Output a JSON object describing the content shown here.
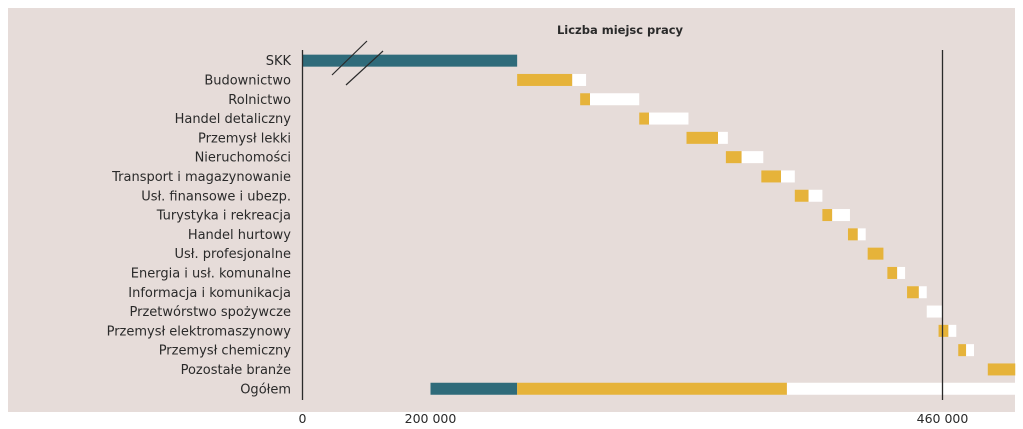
{
  "chart_data": {
    "type": "bar",
    "title": "Liczba miejsc pracy",
    "xlabel": "",
    "ylabel": "",
    "axis_break": "between 0 and 200 000",
    "x_ticks": [
      "0",
      "200 000",
      "460 000"
    ],
    "xlim": [
      0,
      460000
    ],
    "grid": false,
    "legend": "none",
    "categories": [
      "SKK",
      "Budownictwo",
      "Rolnictwo",
      "Handel detaliczny",
      "Przemysł lekki",
      "Nieruchomości",
      "Transport i magazynowanie",
      "Usł. finansowe i ubezp.",
      "Turystyka i rekreacja",
      "Handel hurtowy",
      "Usł. profesjonalne",
      "Energia i usł. komunalne",
      "Informacja i komunikacja",
      "Przetwórstwo spożywcze",
      "Przemysł elektromaszynowy",
      "Przemysł chemiczny",
      "Pozostałe branże",
      "Ogółem"
    ],
    "series": [
      {
        "color": "#2f6b7a",
        "values": [
          [
            0,
            244000
          ],
          [
            null,
            null
          ],
          [
            null,
            null
          ],
          [
            null,
            null
          ],
          [
            null,
            null
          ],
          [
            null,
            null
          ],
          [
            null,
            null
          ],
          [
            null,
            null
          ],
          [
            null,
            null
          ],
          [
            null,
            null
          ],
          [
            null,
            null
          ],
          [
            null,
            null
          ],
          [
            null,
            null
          ],
          [
            null,
            null
          ],
          [
            null,
            null
          ],
          [
            null,
            null
          ],
          [
            null,
            null
          ],
          [
            200000,
            244000
          ]
        ]
      },
      {
        "color": "#e6b33a",
        "values": [
          [
            null,
            null
          ],
          [
            244000,
            272000
          ],
          [
            276000,
            281000
          ],
          [
            306000,
            311000
          ],
          [
            330000,
            346000
          ],
          [
            350000,
            358000
          ],
          [
            368000,
            378000
          ],
          [
            385000,
            392000
          ],
          [
            399000,
            404000
          ],
          [
            412000,
            417000
          ],
          [
            422000,
            430000
          ],
          [
            432000,
            437000
          ],
          [
            442000,
            448000
          ],
          [
            null,
            null
          ],
          [
            458000,
            463000
          ],
          [
            468000,
            472000
          ],
          [
            483000,
            497000
          ],
          [
            244000,
            381000
          ]
        ]
      },
      {
        "color": "#ffffff",
        "values": [
          [
            null,
            null
          ],
          [
            272000,
            279000
          ],
          [
            281000,
            306000
          ],
          [
            311000,
            331000
          ],
          [
            346000,
            351000
          ],
          [
            358000,
            369000
          ],
          [
            378000,
            385000
          ],
          [
            392000,
            399000
          ],
          [
            404000,
            413000
          ],
          [
            417000,
            421000
          ],
          [
            null,
            null
          ],
          [
            437000,
            441000
          ],
          [
            448000,
            452000
          ],
          [
            452000,
            460000
          ],
          [
            463000,
            467000
          ],
          [
            472000,
            476000
          ],
          [
            497000,
            513000
          ],
          [
            381000,
            513000
          ]
        ]
      }
    ]
  }
}
